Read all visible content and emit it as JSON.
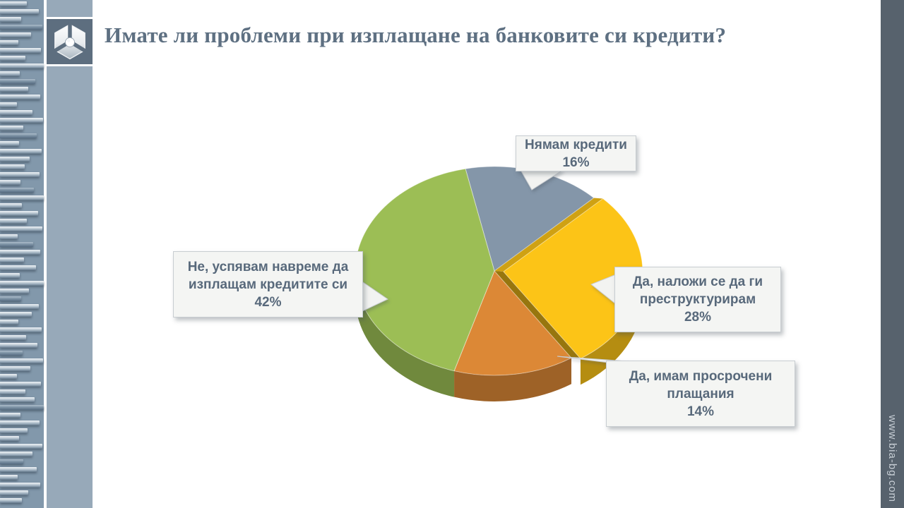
{
  "slide": {
    "title": "Имате ли проблеми при изплащане на банковите си кредити?",
    "website": "www.bia-bg.com"
  },
  "theme": {
    "accent_text": "#5E7082",
    "strip_dark": "#57626D",
    "panel_blue": "#97A9B9"
  },
  "chart_data": {
    "type": "pie",
    "style": "3d-exploded",
    "title": "Имате ли проблеми при изплащане на банковите си кредити?",
    "unit": "%",
    "direction": "clockwise",
    "start_angle_deg": -12,
    "legend_position": "callouts",
    "slices": [
      {
        "label": "Нямам кредити",
        "value": 16,
        "percent_label": "16%",
        "color": "#8496A9",
        "exploded": false
      },
      {
        "label": "Да, наложи се да ги преструктурирам",
        "value": 28,
        "percent_label": "28%",
        "color": "#FCC417",
        "exploded": true
      },
      {
        "label": "Да, имам просрочени плащания",
        "value": 14,
        "percent_label": "14%",
        "color": "#DC8836",
        "exploded": false
      },
      {
        "label": "Не, успявам навреме да изплащам кредитите си",
        "value": 42,
        "percent_label": "42%",
        "color": "#9CBE55",
        "exploded": false
      }
    ]
  }
}
